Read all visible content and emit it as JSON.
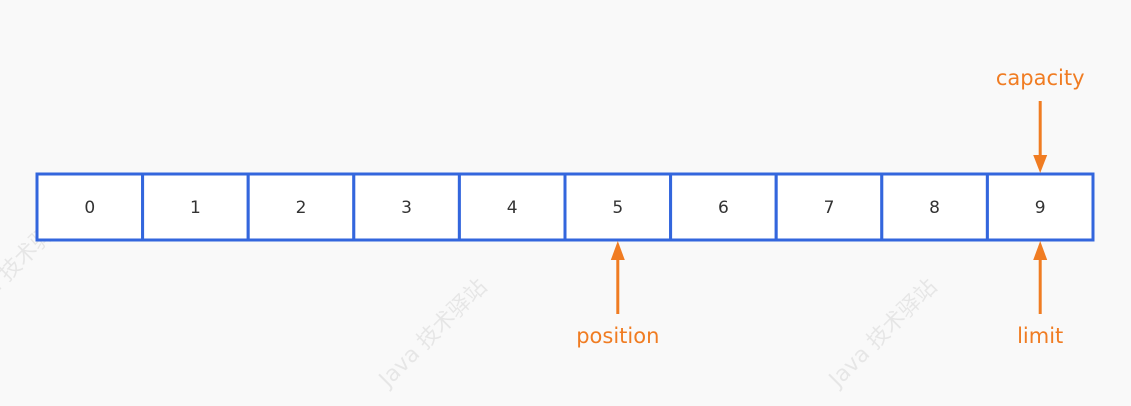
{
  "array": {
    "cells": [
      "0",
      "1",
      "2",
      "3",
      "4",
      "5",
      "6",
      "7",
      "8",
      "9"
    ],
    "border_color": "#3366dd"
  },
  "pointers": [
    {
      "label": "capacity",
      "index": 9,
      "side": "top"
    },
    {
      "label": "position",
      "index": 5,
      "side": "bottom"
    },
    {
      "label": "limit",
      "index": 9,
      "side": "bottom"
    }
  ],
  "pointer_color": "#f07c22",
  "watermark": "Java 技术驿站"
}
